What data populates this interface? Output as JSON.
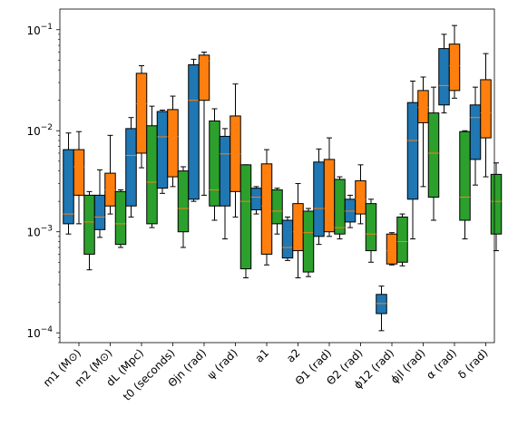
{
  "chart_data": {
    "type": "box",
    "yscale": "log",
    "ylim": [
      8e-05,
      0.16
    ],
    "y_tick_labels": [
      {
        "value": 0.1,
        "base": "10",
        "exp": "−1"
      },
      {
        "value": 0.01,
        "base": "10",
        "exp": "−2"
      },
      {
        "value": 0.001,
        "base": "10",
        "exp": "−3"
      },
      {
        "value": 0.0001,
        "base": "10",
        "exp": "−4"
      }
    ],
    "categories": [
      "m1 (M⊙)",
      "m2 (M⊙)",
      "dL (Mpc)",
      "t0 (seconds)",
      "Θjn (rad)",
      "ψ (rad)",
      "a1",
      "a2",
      "Θ1 (rad)",
      "Θ2 (rad)",
      "ϕ12 (rad)",
      "ϕjl (rad)",
      "α (rad)",
      "δ (rad)"
    ],
    "series_colors": [
      "#1f77b4",
      "#ff7f0e",
      "#2ca02c"
    ],
    "median_color": "#ff7f0e",
    "boxes": [
      [
        {
          "whislo": 0.00095,
          "q1": 0.0012,
          "med": 0.0015,
          "q3": 0.0065,
          "whishi": 0.0095
        },
        {
          "whislo": 0.0012,
          "q1": 0.0023,
          "med": 0.0044,
          "q3": 0.0065,
          "whishi": 0.0098
        },
        {
          "whislo": 0.00042,
          "q1": 0.0006,
          "med": 0.00125,
          "q3": 0.0023,
          "whishi": 0.0025
        }
      ],
      [
        {
          "whislo": 0.00088,
          "q1": 0.00105,
          "med": 0.0014,
          "q3": 0.0023,
          "whishi": 0.0041
        },
        {
          "whislo": 0.0015,
          "q1": 0.0018,
          "med": 0.0026,
          "q3": 0.0038,
          "whishi": 0.009
        },
        {
          "whislo": 0.0007,
          "q1": 0.00075,
          "med": 0.0012,
          "q3": 0.0025,
          "whishi": 0.0026
        }
      ],
      [
        {
          "whislo": 0.0014,
          "q1": 0.0018,
          "med": 0.0057,
          "q3": 0.0105,
          "whishi": 0.0135
        },
        {
          "whislo": 0.0043,
          "q1": 0.006,
          "med": 0.0185,
          "q3": 0.037,
          "whishi": 0.044
        },
        {
          "whislo": 0.0011,
          "q1": 0.0012,
          "med": 0.0031,
          "q3": 0.0112,
          "whishi": 0.0175
        }
      ],
      [
        {
          "whislo": 0.0024,
          "q1": 0.0027,
          "med": 0.0087,
          "q3": 0.0155,
          "whishi": 0.016
        },
        {
          "whislo": 0.0028,
          "q1": 0.0035,
          "med": 0.0088,
          "q3": 0.0162,
          "whishi": 0.022
        },
        {
          "whislo": 0.0007,
          "q1": 0.001,
          "med": 0.0017,
          "q3": 0.004,
          "whishi": 0.0044
        }
      ],
      [
        {
          "whislo": 0.002,
          "q1": 0.0021,
          "med": 0.02,
          "q3": 0.045,
          "whishi": 0.051
        },
        {
          "whislo": 0.0023,
          "q1": 0.02,
          "med": 0.049,
          "q3": 0.056,
          "whishi": 0.06
        },
        {
          "whislo": 0.0013,
          "q1": 0.0018,
          "med": 0.0026,
          "q3": 0.0125,
          "whishi": 0.0165
        }
      ],
      [
        {
          "whislo": 0.00085,
          "q1": 0.0018,
          "med": 0.0059,
          "q3": 0.0088,
          "whishi": 0.0105
        },
        {
          "whislo": 0.0014,
          "q1": 0.0025,
          "med": 0.0059,
          "q3": 0.014,
          "whishi": 0.029
        },
        {
          "whislo": 0.00035,
          "q1": 0.00043,
          "med": 0.002,
          "q3": 0.0046,
          "whishi": 0.0046
        }
      ],
      [
        {
          "whislo": 0.0015,
          "q1": 0.00165,
          "med": 0.0022,
          "q3": 0.0027,
          "whishi": 0.0028
        },
        {
          "whislo": 0.00047,
          "q1": 0.0006,
          "med": 0.0018,
          "q3": 0.0047,
          "whishi": 0.0065
        },
        {
          "whislo": 0.00095,
          "q1": 0.0012,
          "med": 0.0016,
          "q3": 0.0026,
          "whishi": 0.0027
        }
      ],
      [
        {
          "whislo": 0.00052,
          "q1": 0.00055,
          "med": 0.0007,
          "q3": 0.0013,
          "whishi": 0.0014
        },
        {
          "whislo": 0.00035,
          "q1": 0.00065,
          "med": 0.001,
          "q3": 0.0019,
          "whishi": 0.003
        },
        {
          "whislo": 0.00036,
          "q1": 0.0004,
          "med": 0.00098,
          "q3": 0.0016,
          "whishi": 0.0017
        }
      ],
      [
        {
          "whislo": 0.00075,
          "q1": 0.0009,
          "med": 0.0017,
          "q3": 0.0049,
          "whishi": 0.0066
        },
        {
          "whislo": 0.0009,
          "q1": 0.001,
          "med": 0.0017,
          "q3": 0.0052,
          "whishi": 0.0085
        },
        {
          "whislo": 0.00085,
          "q1": 0.00095,
          "med": 0.0011,
          "q3": 0.0033,
          "whishi": 0.0035
        }
      ],
      [
        {
          "whislo": 0.0011,
          "q1": 0.00125,
          "med": 0.0016,
          "q3": 0.0021,
          "whishi": 0.0023
        },
        {
          "whislo": 0.0012,
          "q1": 0.0015,
          "med": 0.0021,
          "q3": 0.0032,
          "whishi": 0.0046
        },
        {
          "whislo": 0.0005,
          "q1": 0.00065,
          "med": 0.00095,
          "q3": 0.0019,
          "whishi": 0.0021
        }
      ],
      [
        {
          "whislo": 0.000105,
          "q1": 0.000155,
          "med": 0.000195,
          "q3": 0.00024,
          "whishi": 0.00029
        },
        {
          "whislo": 0.00047,
          "q1": 0.00048,
          "med": 0.00065,
          "q3": 0.00095,
          "whishi": 0.00098
        },
        {
          "whislo": 0.00046,
          "q1": 0.0005,
          "med": 0.0008,
          "q3": 0.0014,
          "whishi": 0.0015
        }
      ],
      [
        {
          "whislo": 0.00085,
          "q1": 0.0021,
          "med": 0.008,
          "q3": 0.019,
          "whishi": 0.031
        },
        {
          "whislo": 0.0028,
          "q1": 0.012,
          "med": 0.017,
          "q3": 0.025,
          "whishi": 0.034
        },
        {
          "whislo": 0.0013,
          "q1": 0.0022,
          "med": 0.006,
          "q3": 0.015,
          "whishi": 0.027
        }
      ],
      [
        {
          "whislo": 0.015,
          "q1": 0.018,
          "med": 0.028,
          "q3": 0.065,
          "whishi": 0.09
        },
        {
          "whislo": 0.021,
          "q1": 0.025,
          "med": 0.044,
          "q3": 0.072,
          "whishi": 0.11
        },
        {
          "whislo": 0.00085,
          "q1": 0.0013,
          "med": 0.0022,
          "q3": 0.0098,
          "whishi": 0.01
        }
      ],
      [
        {
          "whislo": 0.0029,
          "q1": 0.0052,
          "med": 0.0135,
          "q3": 0.018,
          "whishi": 0.027
        },
        {
          "whislo": 0.0035,
          "q1": 0.0085,
          "med": 0.015,
          "q3": 0.032,
          "whishi": 0.058
        },
        {
          "whislo": 0.00065,
          "q1": 0.00095,
          "med": 0.002,
          "q3": 0.0037,
          "whishi": 0.0048
        }
      ]
    ]
  }
}
